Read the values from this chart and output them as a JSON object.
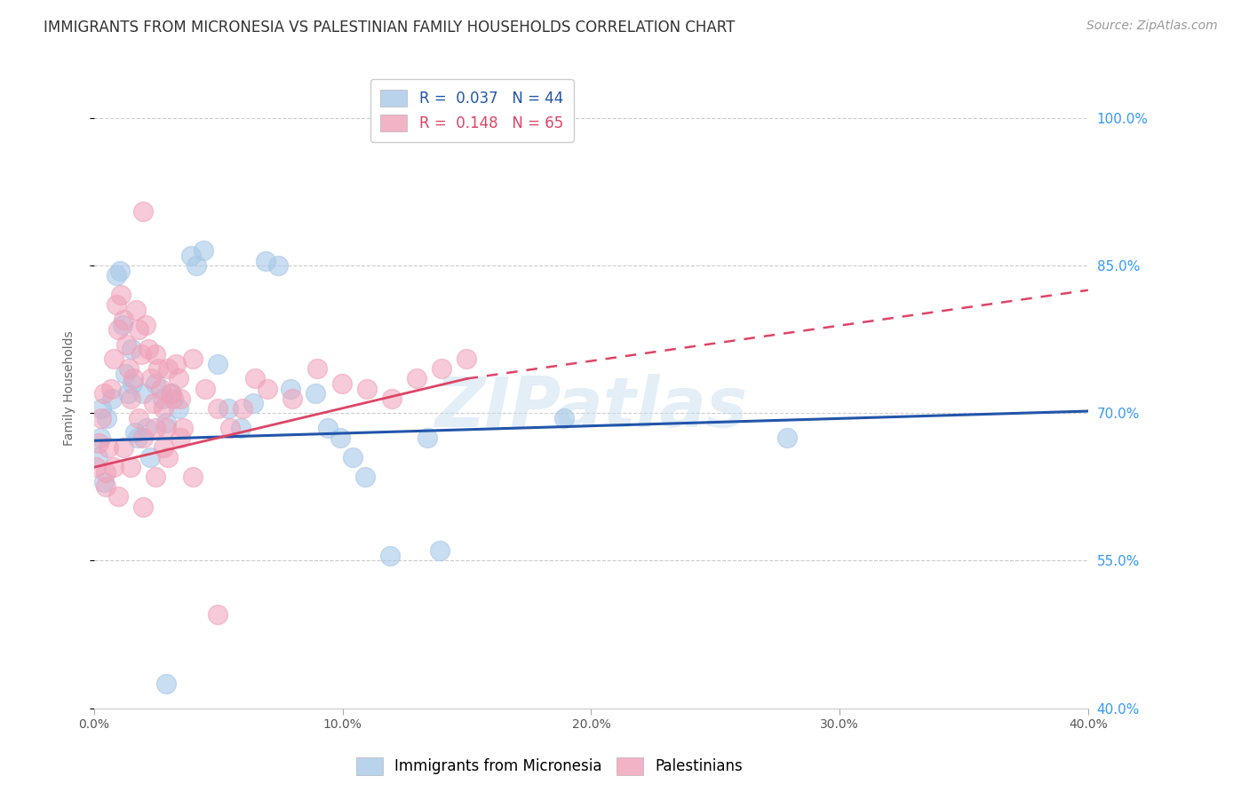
{
  "title": "IMMIGRANTS FROM MICRONESIA VS PALESTINIAN FAMILY HOUSEHOLDS CORRELATION CHART",
  "source": "Source: ZipAtlas.com",
  "ylabel": "Family Households",
  "yticks": [
    40.0,
    55.0,
    70.0,
    85.0,
    100.0
  ],
  "ytick_labels": [
    "40.0%",
    "55.0%",
    "70.0%",
    "85.0%",
    "100.0%"
  ],
  "xlim": [
    0.0,
    40.0
  ],
  "ylim": [
    40.0,
    105.0
  ],
  "watermark": "ZIPatlas",
  "legend_label_blue": "Immigrants from Micronesia",
  "legend_label_pink": "Palestinians",
  "blue_line_x0": 0.0,
  "blue_line_y0": 67.2,
  "blue_line_x1": 40.0,
  "blue_line_y1": 70.2,
  "pink_solid_x0": 0.0,
  "pink_solid_y0": 64.5,
  "pink_solid_x1": 15.0,
  "pink_solid_y1": 73.5,
  "pink_dashed_x0": 15.0,
  "pink_dashed_y0": 73.5,
  "pink_dashed_x1": 40.0,
  "pink_dashed_y1": 82.5,
  "blue_scatter": [
    [
      0.15,
      65.5
    ],
    [
      0.25,
      67.5
    ],
    [
      0.3,
      70.5
    ],
    [
      0.4,
      63.0
    ],
    [
      0.5,
      69.5
    ],
    [
      0.7,
      71.5
    ],
    [
      0.9,
      84.0
    ],
    [
      1.05,
      84.5
    ],
    [
      1.15,
      79.0
    ],
    [
      1.25,
      74.0
    ],
    [
      1.35,
      72.0
    ],
    [
      1.5,
      76.5
    ],
    [
      1.55,
      73.0
    ],
    [
      1.65,
      68.0
    ],
    [
      1.75,
      67.5
    ],
    [
      1.95,
      72.0
    ],
    [
      2.1,
      68.5
    ],
    [
      2.25,
      65.5
    ],
    [
      2.45,
      73.0
    ],
    [
      2.75,
      71.5
    ],
    [
      2.9,
      69.0
    ],
    [
      3.1,
      72.0
    ],
    [
      3.4,
      70.5
    ],
    [
      3.9,
      86.0
    ],
    [
      4.1,
      85.0
    ],
    [
      4.4,
      86.5
    ],
    [
      4.95,
      75.0
    ],
    [
      5.4,
      70.5
    ],
    [
      5.9,
      68.5
    ],
    [
      6.4,
      71.0
    ],
    [
      6.9,
      85.5
    ],
    [
      7.4,
      85.0
    ],
    [
      7.9,
      72.5
    ],
    [
      8.9,
      72.0
    ],
    [
      9.4,
      68.5
    ],
    [
      9.9,
      67.5
    ],
    [
      10.4,
      65.5
    ],
    [
      10.9,
      63.5
    ],
    [
      11.9,
      55.5
    ],
    [
      13.4,
      67.5
    ],
    [
      13.9,
      56.0
    ],
    [
      18.9,
      69.5
    ],
    [
      27.9,
      67.5
    ],
    [
      2.9,
      42.5
    ]
  ],
  "pink_scatter": [
    [
      0.08,
      64.5
    ],
    [
      0.18,
      67.0
    ],
    [
      0.28,
      69.5
    ],
    [
      0.38,
      72.0
    ],
    [
      0.48,
      64.0
    ],
    [
      0.58,
      66.5
    ],
    [
      0.68,
      72.5
    ],
    [
      0.78,
      75.5
    ],
    [
      0.88,
      81.0
    ],
    [
      0.98,
      78.5
    ],
    [
      1.08,
      82.0
    ],
    [
      1.18,
      79.5
    ],
    [
      1.28,
      77.0
    ],
    [
      1.38,
      74.5
    ],
    [
      1.48,
      71.5
    ],
    [
      1.58,
      73.5
    ],
    [
      1.68,
      80.5
    ],
    [
      1.78,
      78.5
    ],
    [
      1.88,
      76.0
    ],
    [
      1.98,
      90.5
    ],
    [
      2.08,
      79.0
    ],
    [
      2.18,
      76.5
    ],
    [
      2.28,
      73.5
    ],
    [
      2.38,
      71.0
    ],
    [
      2.48,
      76.0
    ],
    [
      2.58,
      74.5
    ],
    [
      2.68,
      72.5
    ],
    [
      2.78,
      70.5
    ],
    [
      2.88,
      68.5
    ],
    [
      2.98,
      74.5
    ],
    [
      3.08,
      72.0
    ],
    [
      3.18,
      71.5
    ],
    [
      3.28,
      75.0
    ],
    [
      3.38,
      73.5
    ],
    [
      3.48,
      71.5
    ],
    [
      3.58,
      68.5
    ],
    [
      3.98,
      75.5
    ],
    [
      4.48,
      72.5
    ],
    [
      4.98,
      70.5
    ],
    [
      5.48,
      68.5
    ],
    [
      5.98,
      70.5
    ],
    [
      6.48,
      73.5
    ],
    [
      6.98,
      72.5
    ],
    [
      7.98,
      71.5
    ],
    [
      8.98,
      74.5
    ],
    [
      9.98,
      73.0
    ],
    [
      10.98,
      72.5
    ],
    [
      11.98,
      71.5
    ],
    [
      12.98,
      73.5
    ],
    [
      13.98,
      74.5
    ],
    [
      14.98,
      75.5
    ],
    [
      2.98,
      65.5
    ],
    [
      3.98,
      63.5
    ],
    [
      1.98,
      60.5
    ],
    [
      4.98,
      49.5
    ],
    [
      1.48,
      64.5
    ],
    [
      2.48,
      63.5
    ],
    [
      0.48,
      62.5
    ],
    [
      0.78,
      64.5
    ],
    [
      0.98,
      61.5
    ],
    [
      1.98,
      67.5
    ],
    [
      3.48,
      67.5
    ],
    [
      1.18,
      66.5
    ],
    [
      2.78,
      66.5
    ],
    [
      1.78,
      69.5
    ],
    [
      2.48,
      68.5
    ]
  ],
  "background_color": "#ffffff",
  "grid_color": "#cccccc",
  "blue_color": "#a8c8e8",
  "pink_color": "#f0a0b8",
  "blue_line_color": "#2255aa",
  "pink_line_color": "#dd4466",
  "title_fontsize": 12,
  "axis_label_fontsize": 10,
  "tick_fontsize": 10,
  "legend_fontsize": 12,
  "source_fontsize": 10
}
